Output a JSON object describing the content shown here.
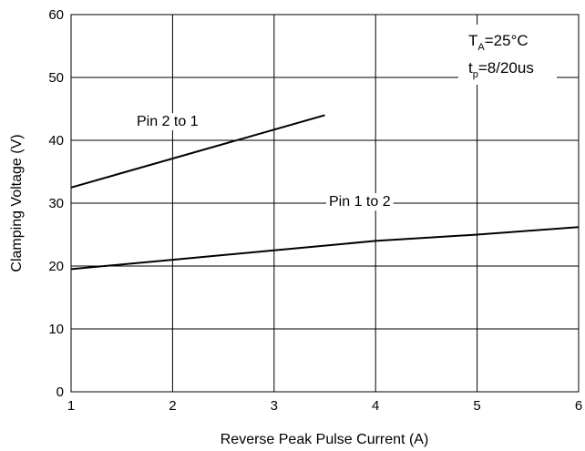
{
  "chart_data": {
    "type": "line",
    "xlabel": "Reverse Peak Pulse Current (A)",
    "ylabel": "Clamping Voltage (V)",
    "xlim": [
      1,
      6
    ],
    "ylim": [
      0,
      60
    ],
    "x_ticks": [
      1,
      2,
      3,
      4,
      5,
      6
    ],
    "y_ticks": [
      0,
      10,
      20,
      30,
      40,
      50,
      60
    ],
    "grid": true,
    "series": [
      {
        "name": "Pin 2 to 1",
        "x": [
          1,
          3.5
        ],
        "y": [
          32.5,
          44
        ]
      },
      {
        "name": "Pin 1 to 2",
        "x": [
          1,
          2,
          3,
          4,
          5,
          6
        ],
        "y": [
          19.5,
          21,
          22.5,
          24,
          25,
          26.2
        ]
      }
    ],
    "annotations": {
      "ta_main": "T",
      "ta_sub": "A",
      "ta_value": "=25°C",
      "tp_main": "t",
      "tp_sub": "p",
      "tp_value": "=8/20us"
    },
    "line_color": "#000000",
    "grid_color": "#000000"
  }
}
